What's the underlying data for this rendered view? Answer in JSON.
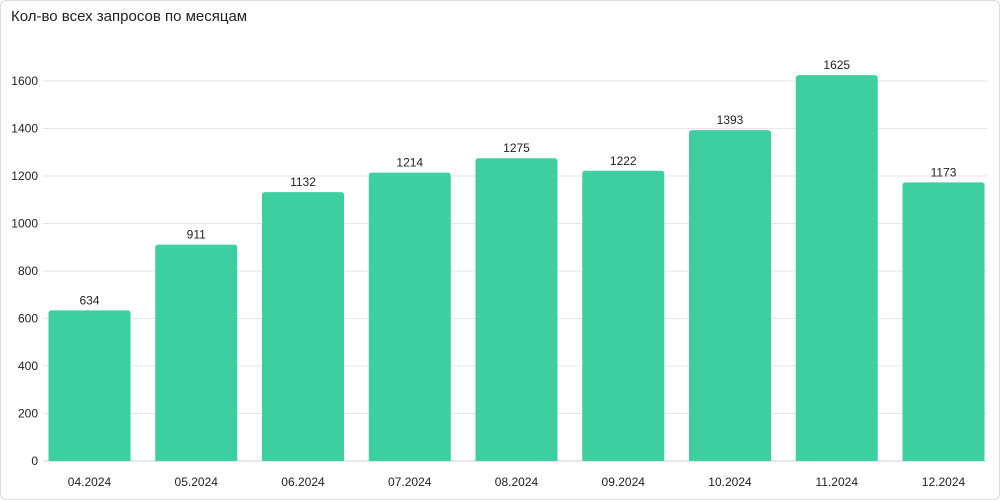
{
  "chart_data": {
    "type": "bar",
    "title": "Кол-во всех запросов по месяцам",
    "categories": [
      "04.2024",
      "05.2024",
      "06.2024",
      "07.2024",
      "08.2024",
      "09.2024",
      "10.2024",
      "11.2024",
      "12.2024"
    ],
    "values": [
      634,
      911,
      1132,
      1214,
      1275,
      1222,
      1393,
      1625,
      1173
    ],
    "ylim": [
      0,
      1600
    ],
    "yticks": [
      0,
      200,
      400,
      600,
      800,
      1000,
      1200,
      1400,
      1600
    ],
    "xlabel": "",
    "ylabel": "",
    "bar_color": "#3ecfa0",
    "grid_color": "#e6e6e6",
    "grid": true,
    "data_labels": true
  }
}
